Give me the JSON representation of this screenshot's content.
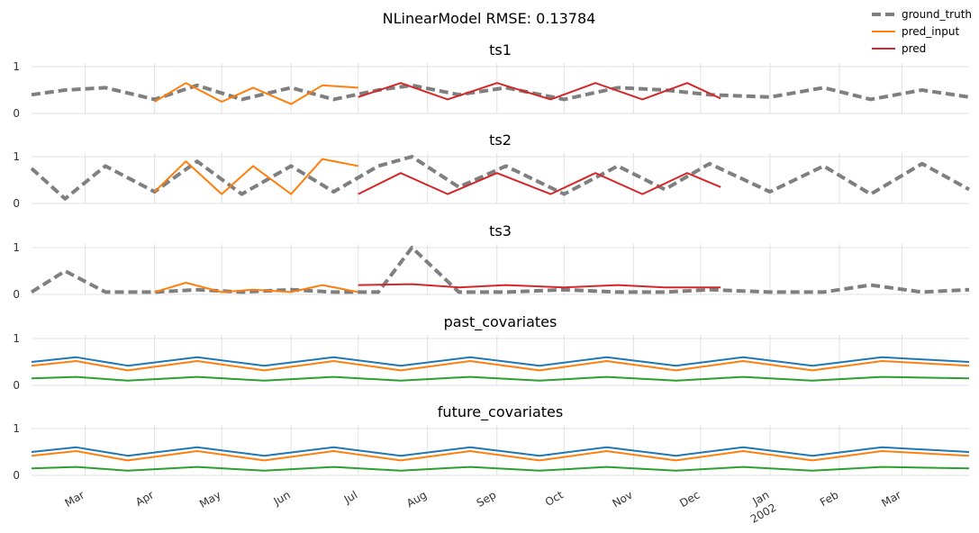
{
  "chart_data": {
    "type": "line",
    "title": "NLinearModel RMSE: 0.13784",
    "legend": {
      "placement": "top-right",
      "entries": [
        {
          "label": "ground_truth",
          "color": "#7f7f7f",
          "style": "dashed"
        },
        {
          "label": "pred_input",
          "color": "#ff7f0e",
          "style": "solid"
        },
        {
          "label": "pred",
          "color": "#d62728",
          "style": "solid"
        }
      ]
    },
    "grid": true,
    "x_axis": {
      "start": "2001-02-05",
      "end": "2002-03-31",
      "ticks": [
        {
          "date": "2001-03-01",
          "label": "Mar"
        },
        {
          "date": "2001-04-01",
          "label": "Apr"
        },
        {
          "date": "2001-05-01",
          "label": "May"
        },
        {
          "date": "2001-06-01",
          "label": "Jun"
        },
        {
          "date": "2001-07-01",
          "label": "Jul"
        },
        {
          "date": "2001-08-01",
          "label": "Aug"
        },
        {
          "date": "2001-09-01",
          "label": "Sep"
        },
        {
          "date": "2001-10-01",
          "label": "Oct"
        },
        {
          "date": "2001-11-01",
          "label": "Nov"
        },
        {
          "date": "2001-12-01",
          "label": "Dec"
        },
        {
          "date": "2002-01-01",
          "label": "Jan",
          "sublabel": "2002"
        },
        {
          "date": "2002-02-01",
          "label": "Feb"
        },
        {
          "date": "2002-03-01",
          "label": "Mar"
        }
      ]
    },
    "panels": [
      {
        "title": "ts1",
        "ylim": [
          0,
          1
        ],
        "yticks": [
          "0",
          "1"
        ],
        "series": [
          {
            "name": "ground_truth",
            "color": "#7f7f7f",
            "x": [
              "2001-02-05",
              "2001-02-20",
              "2001-03-10",
              "2001-04-01",
              "2001-04-20",
              "2001-05-10",
              "2001-06-01",
              "2001-06-20",
              "2001-07-10",
              "2001-07-25",
              "2001-08-15",
              "2001-09-05",
              "2001-10-01",
              "2001-10-25",
              "2001-11-15",
              "2001-12-05",
              "2002-01-01",
              "2002-01-25",
              "2002-02-15",
              "2002-03-10",
              "2002-03-31"
            ],
            "values": [
              0.4,
              0.5,
              0.55,
              0.3,
              0.6,
              0.3,
              0.55,
              0.3,
              0.5,
              0.6,
              0.4,
              0.55,
              0.3,
              0.55,
              0.5,
              0.4,
              0.35,
              0.55,
              0.3,
              0.5,
              0.35
            ]
          },
          {
            "name": "pred_input",
            "color": "#ff7f0e",
            "x": [
              "2001-04-01",
              "2001-04-15",
              "2001-05-01",
              "2001-05-15",
              "2001-06-01",
              "2001-06-15",
              "2001-07-01"
            ],
            "values": [
              0.25,
              0.65,
              0.25,
              0.55,
              0.2,
              0.6,
              0.55
            ]
          },
          {
            "name": "pred",
            "color": "#d62728",
            "x": [
              "2001-07-01",
              "2001-07-20",
              "2001-08-10",
              "2001-09-01",
              "2001-09-25",
              "2001-10-15",
              "2001-11-05",
              "2001-11-25",
              "2001-12-10"
            ],
            "values": [
              0.35,
              0.65,
              0.3,
              0.65,
              0.3,
              0.65,
              0.3,
              0.65,
              0.32
            ]
          }
        ]
      },
      {
        "title": "ts2",
        "ylim": [
          0,
          1
        ],
        "yticks": [
          "0",
          "1"
        ],
        "series": [
          {
            "name": "ground_truth",
            "color": "#7f7f7f",
            "x": [
              "2001-02-05",
              "2001-02-20",
              "2001-03-10",
              "2001-04-01",
              "2001-04-20",
              "2001-05-10",
              "2001-06-01",
              "2001-06-20",
              "2001-07-10",
              "2001-07-25",
              "2001-08-15",
              "2001-09-05",
              "2001-10-01",
              "2001-10-25",
              "2001-11-15",
              "2001-12-05",
              "2002-01-01",
              "2002-01-25",
              "2002-02-15",
              "2002-03-10",
              "2002-03-31"
            ],
            "values": [
              0.75,
              0.1,
              0.8,
              0.25,
              0.9,
              0.2,
              0.8,
              0.25,
              0.8,
              1.0,
              0.35,
              0.8,
              0.2,
              0.8,
              0.3,
              0.85,
              0.25,
              0.8,
              0.2,
              0.85,
              0.3
            ]
          },
          {
            "name": "pred_input",
            "color": "#ff7f0e",
            "x": [
              "2001-04-01",
              "2001-04-15",
              "2001-05-01",
              "2001-05-15",
              "2001-06-01",
              "2001-06-15",
              "2001-07-01"
            ],
            "values": [
              0.25,
              0.9,
              0.2,
              0.8,
              0.2,
              0.95,
              0.8
            ]
          },
          {
            "name": "pred",
            "color": "#d62728",
            "x": [
              "2001-07-01",
              "2001-07-20",
              "2001-08-10",
              "2001-09-01",
              "2001-09-25",
              "2001-10-15",
              "2001-11-05",
              "2001-11-25",
              "2001-12-10"
            ],
            "values": [
              0.2,
              0.65,
              0.2,
              0.65,
              0.2,
              0.65,
              0.2,
              0.65,
              0.35
            ]
          }
        ]
      },
      {
        "title": "ts3",
        "ylim": [
          0,
          1
        ],
        "yticks": [
          "0",
          "1"
        ],
        "series": [
          {
            "name": "ground_truth",
            "color": "#7f7f7f",
            "x": [
              "2001-02-05",
              "2001-02-20",
              "2001-03-10",
              "2001-04-01",
              "2001-04-20",
              "2001-05-10",
              "2001-06-01",
              "2001-06-20",
              "2001-07-10",
              "2001-07-25",
              "2001-08-15",
              "2001-09-05",
              "2001-10-01",
              "2001-10-25",
              "2001-11-15",
              "2001-12-05",
              "2002-01-01",
              "2002-01-25",
              "2002-02-15",
              "2002-03-10",
              "2002-03-31"
            ],
            "values": [
              0.05,
              0.5,
              0.05,
              0.05,
              0.1,
              0.05,
              0.1,
              0.05,
              0.05,
              1.0,
              0.05,
              0.05,
              0.1,
              0.05,
              0.05,
              0.1,
              0.05,
              0.05,
              0.2,
              0.05,
              0.1
            ]
          },
          {
            "name": "pred_input",
            "color": "#ff7f0e",
            "x": [
              "2001-04-01",
              "2001-04-15",
              "2001-05-01",
              "2001-05-15",
              "2001-06-01",
              "2001-06-15",
              "2001-07-01"
            ],
            "values": [
              0.05,
              0.25,
              0.05,
              0.1,
              0.05,
              0.2,
              0.05
            ]
          },
          {
            "name": "pred",
            "color": "#d62728",
            "x": [
              "2001-07-01",
              "2001-07-25",
              "2001-08-15",
              "2001-09-05",
              "2001-10-01",
              "2001-10-25",
              "2001-11-15",
              "2001-12-10"
            ],
            "values": [
              0.2,
              0.22,
              0.15,
              0.2,
              0.15,
              0.2,
              0.15,
              0.15
            ]
          }
        ]
      },
      {
        "title": "past_covariates",
        "ylim": [
          0,
          1
        ],
        "yticks": [
          "0",
          "1"
        ],
        "series": [
          {
            "color": "#1f77b4",
            "x": [
              "2001-02-05",
              "2001-02-25",
              "2001-03-20",
              "2001-04-20",
              "2001-05-20",
              "2001-06-20",
              "2001-07-20",
              "2001-08-20",
              "2001-09-20",
              "2001-10-20",
              "2001-11-20",
              "2001-12-20",
              "2002-01-20",
              "2002-02-20",
              "2002-03-31"
            ],
            "values": [
              0.5,
              0.6,
              0.42,
              0.6,
              0.42,
              0.6,
              0.42,
              0.6,
              0.42,
              0.6,
              0.42,
              0.6,
              0.42,
              0.6,
              0.5
            ]
          },
          {
            "color": "#ff7f0e",
            "x": [
              "2001-02-05",
              "2001-02-25",
              "2001-03-20",
              "2001-04-20",
              "2001-05-20",
              "2001-06-20",
              "2001-07-20",
              "2001-08-20",
              "2001-09-20",
              "2001-10-20",
              "2001-11-20",
              "2001-12-20",
              "2002-01-20",
              "2002-02-20",
              "2002-03-31"
            ],
            "values": [
              0.42,
              0.52,
              0.32,
              0.52,
              0.32,
              0.52,
              0.32,
              0.52,
              0.32,
              0.52,
              0.32,
              0.52,
              0.32,
              0.52,
              0.42
            ]
          },
          {
            "color": "#2ca02c",
            "x": [
              "2001-02-05",
              "2001-02-25",
              "2001-03-20",
              "2001-04-20",
              "2001-05-20",
              "2001-06-20",
              "2001-07-20",
              "2001-08-20",
              "2001-09-20",
              "2001-10-20",
              "2001-11-20",
              "2001-12-20",
              "2002-01-20",
              "2002-02-20",
              "2002-03-31"
            ],
            "values": [
              0.15,
              0.18,
              0.1,
              0.18,
              0.1,
              0.18,
              0.1,
              0.18,
              0.1,
              0.18,
              0.1,
              0.18,
              0.1,
              0.18,
              0.15
            ]
          }
        ]
      },
      {
        "title": "future_covariates",
        "ylim": [
          0,
          1
        ],
        "yticks": [
          "0",
          "1"
        ],
        "series": [
          {
            "color": "#1f77b4",
            "x": [
              "2001-02-05",
              "2001-02-25",
              "2001-03-20",
              "2001-04-20",
              "2001-05-20",
              "2001-06-20",
              "2001-07-20",
              "2001-08-20",
              "2001-09-20",
              "2001-10-20",
              "2001-11-20",
              "2001-12-20",
              "2002-01-20",
              "2002-02-20",
              "2002-03-31"
            ],
            "values": [
              0.5,
              0.6,
              0.42,
              0.6,
              0.42,
              0.6,
              0.42,
              0.6,
              0.42,
              0.6,
              0.42,
              0.6,
              0.42,
              0.6,
              0.5
            ]
          },
          {
            "color": "#ff7f0e",
            "x": [
              "2001-02-05",
              "2001-02-25",
              "2001-03-20",
              "2001-04-20",
              "2001-05-20",
              "2001-06-20",
              "2001-07-20",
              "2001-08-20",
              "2001-09-20",
              "2001-10-20",
              "2001-11-20",
              "2001-12-20",
              "2002-01-20",
              "2002-02-20",
              "2002-03-31"
            ],
            "values": [
              0.42,
              0.52,
              0.32,
              0.52,
              0.32,
              0.52,
              0.32,
              0.52,
              0.32,
              0.52,
              0.32,
              0.52,
              0.32,
              0.52,
              0.42
            ]
          },
          {
            "color": "#2ca02c",
            "x": [
              "2001-02-05",
              "2001-02-25",
              "2001-03-20",
              "2001-04-20",
              "2001-05-20",
              "2001-06-20",
              "2001-07-20",
              "2001-08-20",
              "2001-09-20",
              "2001-10-20",
              "2001-11-20",
              "2001-12-20",
              "2002-01-20",
              "2002-02-20",
              "2002-03-31"
            ],
            "values": [
              0.15,
              0.18,
              0.1,
              0.18,
              0.1,
              0.18,
              0.1,
              0.18,
              0.1,
              0.18,
              0.1,
              0.18,
              0.1,
              0.18,
              0.15
            ]
          }
        ]
      }
    ]
  }
}
